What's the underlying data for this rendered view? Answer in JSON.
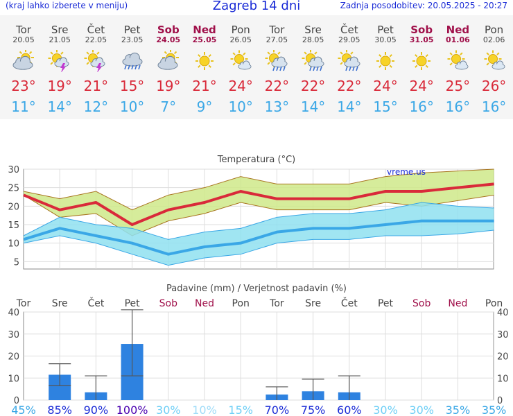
{
  "header": {
    "left": "(kraj lahko izberete v meniju)",
    "title": "Zagreb 14 dni",
    "right": "Zadnja posodobitev: 20.05.2025 - 20:27"
  },
  "colors": {
    "max": "#d92a3a",
    "min": "#3aa7e6",
    "weekend": "#a0104a",
    "bar": "#2e82e0"
  },
  "days": [
    {
      "name": "Tor",
      "date": "20.05",
      "weekend": false,
      "icon": "sun-cloud",
      "tmax": "23°",
      "tmin": "11°"
    },
    {
      "name": "Sre",
      "date": "21.05",
      "weekend": false,
      "icon": "sun-thunder",
      "tmax": "19°",
      "tmin": "14°"
    },
    {
      "name": "Čet",
      "date": "22.05",
      "weekend": false,
      "icon": "sun-thunder",
      "tmax": "21°",
      "tmin": "12°"
    },
    {
      "name": "Pet",
      "date": "23.05",
      "weekend": false,
      "icon": "cloud-rain",
      "tmax": "15°",
      "tmin": "10°"
    },
    {
      "name": "Sob",
      "date": "24.05",
      "weekend": true,
      "icon": "sun-cloud",
      "tmax": "19°",
      "tmin": "7°"
    },
    {
      "name": "Ned",
      "date": "25.05",
      "weekend": true,
      "icon": "sun",
      "tmax": "21°",
      "tmin": "9°"
    },
    {
      "name": "Pon",
      "date": "26.05",
      "weekend": false,
      "icon": "sun-small-cloud",
      "tmax": "24°",
      "tmin": "10°"
    },
    {
      "name": "Tor",
      "date": "27.05",
      "weekend": false,
      "icon": "sun-cloud-rain",
      "tmax": "22°",
      "tmin": "13°"
    },
    {
      "name": "Sre",
      "date": "28.05",
      "weekend": false,
      "icon": "sun-cloud-rain",
      "tmax": "22°",
      "tmin": "14°"
    },
    {
      "name": "Čet",
      "date": "29.05",
      "weekend": false,
      "icon": "sun-cloud-rain",
      "tmax": "22°",
      "tmin": "14°"
    },
    {
      "name": "Pet",
      "date": "30.05",
      "weekend": false,
      "icon": "sun",
      "tmax": "24°",
      "tmin": "15°"
    },
    {
      "name": "Sob",
      "date": "31.05",
      "weekend": true,
      "icon": "sun",
      "tmax": "24°",
      "tmin": "16°"
    },
    {
      "name": "Ned",
      "date": "01.06",
      "weekend": true,
      "icon": "sun-small-cloud",
      "tmax": "25°",
      "tmin": "16°"
    },
    {
      "name": "Pon",
      "date": "02.06",
      "weekend": false,
      "icon": "sun-small-cloud",
      "tmax": "26°",
      "tmin": "16°"
    }
  ],
  "chart_data": [
    {
      "type": "line",
      "title": "Temperatura (°C)",
      "watermark": "vreme.us",
      "ylim": [
        3,
        30
      ],
      "yticks": [
        5,
        10,
        15,
        20,
        25,
        30
      ],
      "grid": true,
      "series": [
        {
          "values": [
            23,
            19,
            21,
            15,
            19,
            21,
            24,
            22,
            22,
            22,
            24,
            24,
            25,
            26
          ]
        },
        {
          "values": [
            11,
            14,
            12,
            10,
            7,
            9,
            10,
            13,
            14,
            14,
            15,
            16,
            16,
            16
          ]
        }
      ],
      "bands": [
        {
          "upper": [
            24,
            22,
            24,
            19,
            23,
            25,
            28,
            26,
            26,
            26,
            28,
            29,
            29.5,
            30
          ],
          "lower": [
            23,
            17,
            18,
            12,
            16,
            18,
            21,
            19,
            19,
            19,
            21,
            20,
            21.5,
            23
          ]
        },
        {
          "upper": [
            12,
            17,
            15,
            14,
            11,
            13,
            14,
            17,
            18,
            18,
            19,
            21,
            20,
            19.5
          ],
          "lower": [
            10,
            12,
            10,
            7,
            4,
            6,
            7,
            10,
            11,
            11,
            12,
            12,
            12.5,
            13.5
          ]
        }
      ]
    },
    {
      "type": "bar",
      "title": "Padavine (mm) / Verjetnost padavin (%)",
      "categories": [
        "Tor",
        "Sre",
        "Čet",
        "Pet",
        "Sob",
        "Ned",
        "Pon",
        "Tor",
        "Sre",
        "Čet",
        "Pet",
        "Sob",
        "Ned",
        "Pon"
      ],
      "weekend": [
        false,
        false,
        false,
        false,
        true,
        true,
        false,
        false,
        false,
        false,
        false,
        true,
        true,
        false
      ],
      "ylim": [
        0,
        40
      ],
      "yticks": [
        0,
        10,
        20,
        30,
        40
      ],
      "values": [
        0,
        11.5,
        3.5,
        25.5,
        0,
        0,
        0,
        2.5,
        4,
        3.5,
        0,
        0,
        0,
        0
      ],
      "err_low": [
        0,
        6.5,
        0,
        11,
        0,
        0,
        0,
        0,
        0,
        0,
        0,
        0,
        0,
        0
      ],
      "err_high": [
        0,
        16.5,
        11,
        41,
        0,
        0,
        0,
        6,
        9.5,
        11,
        0,
        0,
        0,
        0
      ],
      "probability": [
        "45%",
        "85%",
        "90%",
        "100%",
        "30%",
        "10%",
        "15%",
        "70%",
        "75%",
        "60%",
        "30%",
        "30%",
        "35%",
        "35%"
      ],
      "probability_colors": [
        "#3aa7e6",
        "#1a2bd6",
        "#1a2bd6",
        "#4a00b0",
        "#6ecff6",
        "#9fdcf8",
        "#6ecff6",
        "#1a2bd6",
        "#1a2bd6",
        "#1a2bd6",
        "#6ecff6",
        "#6ecff6",
        "#3aa7e6",
        "#3aa7e6"
      ]
    }
  ]
}
